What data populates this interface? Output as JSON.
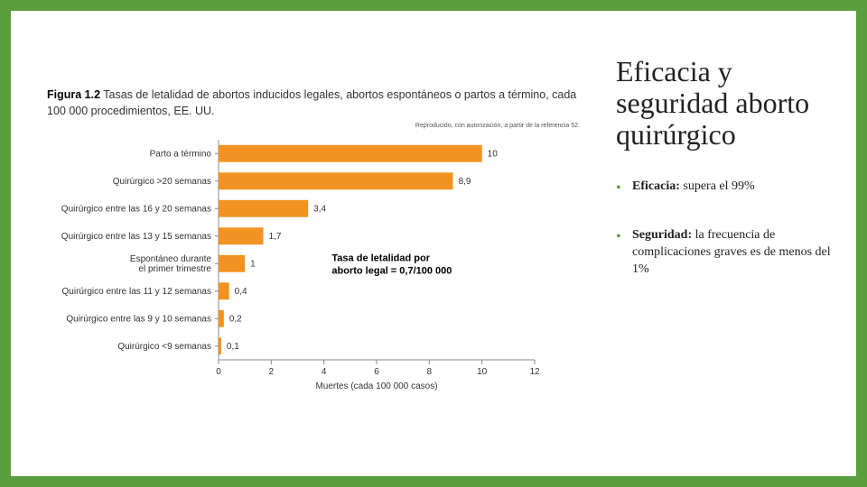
{
  "slide": {
    "border_color": "#5a9e3d",
    "background_color": "#ffffff"
  },
  "figure": {
    "label_prefix": "Figura 1.2",
    "caption": " Tasas de letalidad de abortos inducidos legales, abortos espontáneos o partos a término, cada 100 000 procedimientos, EE. UU.",
    "reproduction_note": "Reproducido, con autorización, a partir de la referencia 52."
  },
  "chart": {
    "type": "bar-horizontal",
    "background_color": "#ffffff",
    "bar_color": "#f29222",
    "plot_border_color": "#888888",
    "grid_on": false,
    "label_font_family": "Arial",
    "label_fontsize": 10,
    "value_label_fontsize": 10,
    "value_label_color": "#333333",
    "category_label_color": "#333333",
    "xaxis": {
      "title": "Muertes (cada 100 000 casos)",
      "title_fontsize": 10,
      "min": 0,
      "max": 12,
      "tick_step": 2,
      "ticks": [
        0,
        2,
        4,
        6,
        8,
        10,
        12
      ]
    },
    "annotation": {
      "text_line1": "Tasa de letalidad por",
      "text_line2": "aborto legal = 0,7/100 000",
      "fontsize": 11,
      "font_weight": "bold",
      "color": "#000000",
      "x_value": 4.3,
      "y_index": 4
    },
    "bar_height": 0.62,
    "categories": [
      "Parto a término",
      "Quirúrgico >20 semanas",
      "Quirúrgico entre las 16 y 20 semanas",
      "Quirúrgico entre las 13 y 15 semanas",
      "Espontáneo durante el primer trimestre",
      "Quirúrgico entre las 11 y 12 semanas",
      "Quirúrgico entre las 9 y 10 semanas",
      "Quirúrgico <9 semanas"
    ],
    "category_multiline": {
      "4": [
        "Espontáneo durante",
        "el primer trimestre"
      ]
    },
    "values": [
      10,
      8.9,
      3.4,
      1.7,
      1,
      0.4,
      0.2,
      0.1
    ],
    "value_labels": [
      "10",
      "8,9",
      "3,4",
      "1,7",
      "1",
      "0,4",
      "0,2",
      "0,1"
    ]
  },
  "right_panel": {
    "title": "Eficacia y seguridad aborto quirúrgico",
    "bullets": [
      {
        "term": "Eficacia:",
        "text": " supera el 99%"
      },
      {
        "term": "Seguridad:",
        "text": " la frecuencia de complicaciones graves es de menos del 1%"
      }
    ]
  }
}
